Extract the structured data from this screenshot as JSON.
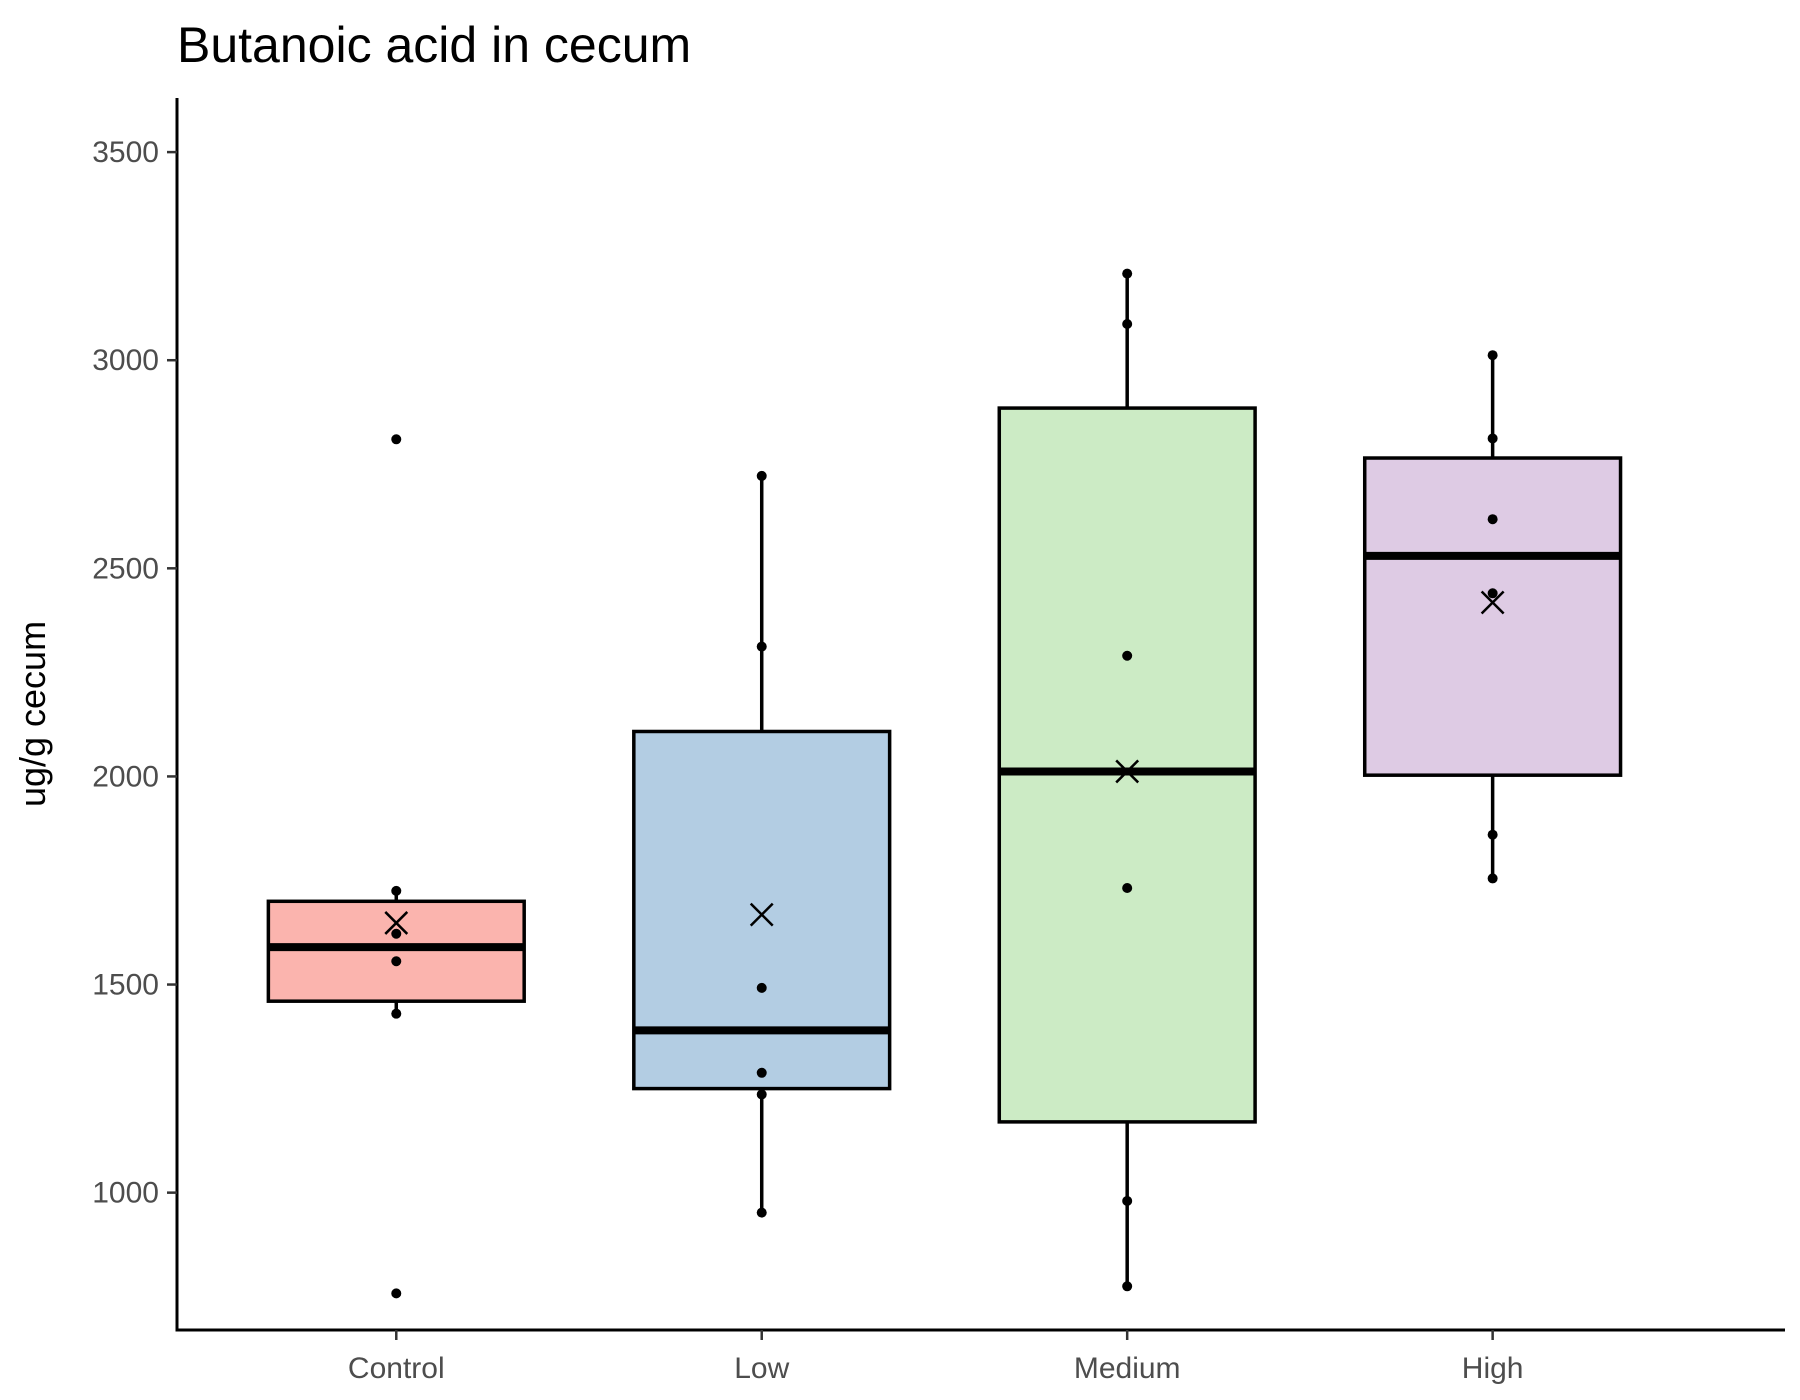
{
  "chart_data": {
    "type": "boxplot",
    "title": "Butanoic acid in cecum",
    "xlabel": "",
    "ylabel": "ug/g cecum",
    "ylim": [
      670,
      3630
    ],
    "yticks": [
      1000,
      1500,
      2000,
      2500,
      3000,
      3500
    ],
    "grid": false,
    "legend": "none",
    "categories": [
      "Control",
      "Low",
      "Medium",
      "High"
    ],
    "groups": [
      {
        "name": "Control",
        "fill": "#fbb4ae",
        "q1": 1460,
        "median": 1590,
        "q3": 1700,
        "whisker_low": 1430,
        "whisker_high": 1725,
        "mean": 1648,
        "points": [
          2810,
          1725,
          1622,
          1556,
          1430,
          758
        ]
      },
      {
        "name": "Low",
        "fill": "#b3cde3",
        "q1": 1250,
        "median": 1390,
        "q3": 2108,
        "whisker_low": 952,
        "whisker_high": 2722,
        "mean": 1668,
        "points": [
          2722,
          2312,
          1492,
          1288,
          1236,
          952
        ]
      },
      {
        "name": "Medium",
        "fill": "#ccebc5",
        "q1": 1170,
        "median": 2012,
        "q3": 2885,
        "whisker_low": 775,
        "whisker_high": 3208,
        "mean": 2012,
        "points": [
          3208,
          3087,
          2290,
          1732,
          980,
          775
        ]
      },
      {
        "name": "High",
        "fill": "#decbe4",
        "q1": 2003,
        "median": 2530,
        "q3": 2765,
        "whisker_low": 1755,
        "whisker_high": 3012,
        "mean": 2418,
        "points": [
          3012,
          2812,
          2618,
          2440,
          1860,
          1755
        ]
      }
    ]
  }
}
